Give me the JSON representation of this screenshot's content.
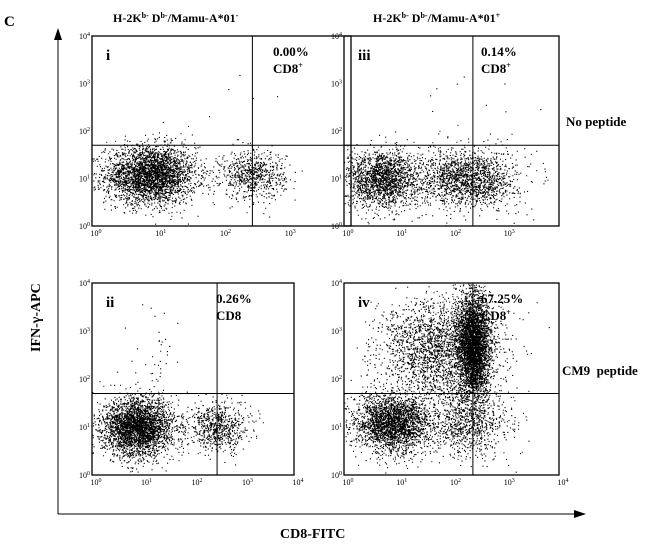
{
  "figure": {
    "panel_letter": "C",
    "x_axis_label": "CD8-FITC",
    "y_axis_label": "IFN-γ-APC",
    "column_headers": [
      "H-2Kb- Db-/Mamu-A*01-",
      "H-2Kb- Db-/Mamu-A*01+"
    ],
    "row_labels": [
      "No peptide",
      "CM9  peptide"
    ]
  },
  "chart_data": [
    {
      "type": "scatter",
      "panel": "i",
      "column": "H-2Kb- Db-/Mamu-A*01-",
      "row": "No peptide",
      "annotation_value": "0.00%",
      "annotation_label": "CD8+",
      "xlim": [
        "10^0",
        "10^4"
      ],
      "ylim": [
        "10^0",
        "10^4"
      ],
      "xscale": "log",
      "yscale": "log",
      "x_tick_labels": [
        "10^0",
        "10^1",
        "10^2",
        "10^3"
      ],
      "y_tick_labels": [
        "10^0",
        "10^1",
        "10^2",
        "10^3",
        "10^4"
      ],
      "gate": {
        "x": 300,
        "y": 50
      },
      "populations": [
        {
          "cx": 8,
          "cy": 12,
          "sx": 0.35,
          "sy": 0.3,
          "n": 3200
        },
        {
          "cx": 300,
          "cy": 12,
          "sx": 0.25,
          "sy": 0.25,
          "n": 700
        },
        {
          "cx": 300,
          "cy": 300,
          "sx": 0.6,
          "sy": 0.6,
          "n": 8
        }
      ]
    },
    {
      "type": "scatter",
      "panel": "iii",
      "column": "H-2Kb- Db-/Mamu-A*01+",
      "row": "No peptide",
      "annotation_value": "0.14%",
      "annotation_label": "CD8+",
      "xlim": [
        "10^0",
        "10^4"
      ],
      "ylim": [
        "10^0",
        "10^4"
      ],
      "xscale": "log",
      "yscale": "log",
      "x_tick_labels": [
        "10^0",
        "10^1",
        "10^2",
        "10^3"
      ],
      "y_tick_labels": [
        "10^0",
        "10^1",
        "10^2",
        "10^3",
        "10^4"
      ],
      "gate": {
        "x": 250,
        "y": 50
      },
      "populations": [
        {
          "cx": 5,
          "cy": 10,
          "sx": 0.35,
          "sy": 0.3,
          "n": 1900
        },
        {
          "cx": 200,
          "cy": 10,
          "sx": 0.45,
          "sy": 0.3,
          "n": 1700
        },
        {
          "cx": 200,
          "cy": 200,
          "sx": 0.8,
          "sy": 0.6,
          "n": 14
        }
      ]
    },
    {
      "type": "scatter",
      "panel": "ii",
      "column": "H-2Kb- Db-/Mamu-A*01-",
      "row": "CM9  peptide",
      "annotation_value": "0.26%",
      "annotation_label": "CD8",
      "xlim": [
        "10^0",
        "10^4"
      ],
      "ylim": [
        "10^0",
        "10^4"
      ],
      "xscale": "log",
      "yscale": "log",
      "x_tick_labels": [
        "10^0",
        "10^1",
        "10^2",
        "10^3",
        "10^4"
      ],
      "y_tick_labels": [
        "10^0",
        "10^1",
        "10^2",
        "10^3",
        "10^4"
      ],
      "gate": {
        "x": 300,
        "y": 50
      },
      "populations": [
        {
          "cx": 8,
          "cy": 10,
          "sx": 0.35,
          "sy": 0.3,
          "n": 3200
        },
        {
          "cx": 300,
          "cy": 10,
          "sx": 0.3,
          "sy": 0.25,
          "n": 700
        },
        {
          "cx": 20,
          "cy": 250,
          "sx": 0.25,
          "sy": 0.55,
          "n": 40
        }
      ]
    },
    {
      "type": "scatter",
      "panel": "iv",
      "column": "H-2Kb- Db-/Mamu-A*01+",
      "row": "CM9  peptide",
      "annotation_value": "67.25%",
      "annotation_label": "CD8+",
      "xlim": [
        "10^0",
        "10^4"
      ],
      "ylim": [
        "10^0",
        "10^4"
      ],
      "xscale": "log",
      "yscale": "log",
      "x_tick_labels": [
        "10^0",
        "10^1",
        "10^2",
        "10^3",
        "10^4"
      ],
      "y_tick_labels": [
        "10^0",
        "10^1",
        "10^2",
        "10^3",
        "10^4"
      ],
      "gate": {
        "x": 250,
        "y": 50
      },
      "populations": [
        {
          "cx": 8,
          "cy": 12,
          "sx": 0.35,
          "sy": 0.3,
          "n": 2600
        },
        {
          "cx": 250,
          "cy": 500,
          "sx": 0.15,
          "sy": 0.55,
          "n": 3600
        },
        {
          "cx": 60,
          "cy": 400,
          "sx": 0.55,
          "sy": 0.55,
          "n": 2400
        },
        {
          "cx": 200,
          "cy": 12,
          "sx": 0.4,
          "sy": 0.35,
          "n": 900
        }
      ]
    }
  ]
}
